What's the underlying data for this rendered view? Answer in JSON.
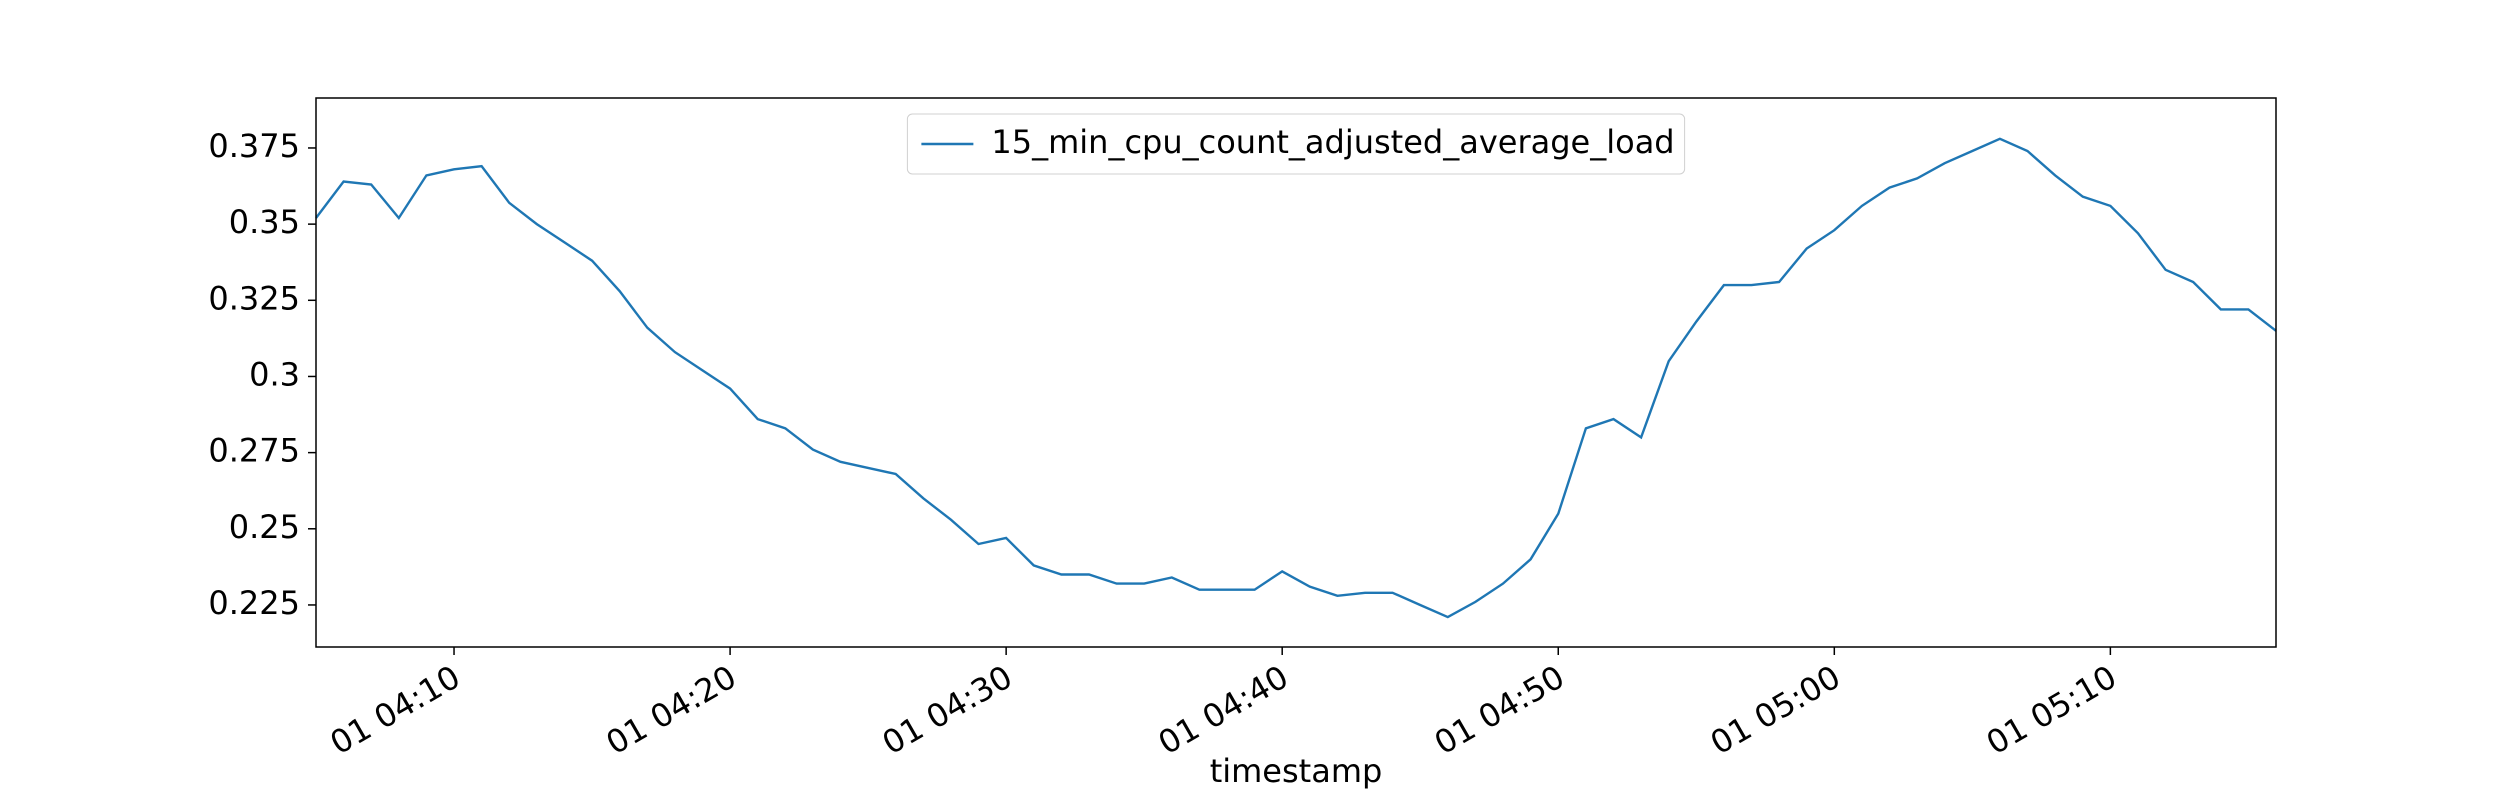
{
  "chart_data": {
    "type": "line",
    "xlabel": "timestamp",
    "x": [
      "01 04:05",
      "01 04:06",
      "01 04:07",
      "01 04:08",
      "01 04:09",
      "01 04:10",
      "01 04:11",
      "01 04:12",
      "01 04:13",
      "01 04:14",
      "01 04:15",
      "01 04:16",
      "01 04:17",
      "01 04:18",
      "01 04:19",
      "01 04:20",
      "01 04:21",
      "01 04:22",
      "01 04:23",
      "01 04:24",
      "01 04:25",
      "01 04:26",
      "01 04:27",
      "01 04:28",
      "01 04:29",
      "01 04:30",
      "01 04:31",
      "01 04:32",
      "01 04:33",
      "01 04:34",
      "01 04:35",
      "01 04:36",
      "01 04:37",
      "01 04:38",
      "01 04:39",
      "01 04:40",
      "01 04:41",
      "01 04:42",
      "01 04:43",
      "01 04:44",
      "01 04:45",
      "01 04:46",
      "01 04:47",
      "01 04:48",
      "01 04:49",
      "01 04:50",
      "01 04:51",
      "01 04:52",
      "01 04:53",
      "01 04:54",
      "01 04:55",
      "01 04:56",
      "01 04:57",
      "01 04:58",
      "01 04:59",
      "01 05:00",
      "01 05:01",
      "01 05:02",
      "01 05:03",
      "01 05:04",
      "01 05:05",
      "01 05:06",
      "01 05:07",
      "01 05:08",
      "01 05:09",
      "01 05:10",
      "01 05:11",
      "01 05:12",
      "01 05:13",
      "01 05:14",
      "01 05:15",
      "01 05:16"
    ],
    "series": [
      {
        "name": "15_min_cpu_count_adjusted_average_load",
        "color": "#1f77b4",
        "values": [
          0.352,
          0.364,
          0.363,
          0.352,
          0.366,
          0.368,
          0.369,
          0.357,
          0.35,
          0.344,
          0.338,
          0.328,
          0.316,
          0.308,
          0.302,
          0.296,
          0.286,
          0.283,
          0.276,
          0.272,
          0.27,
          0.268,
          0.26,
          0.253,
          0.245,
          0.247,
          0.238,
          0.235,
          0.235,
          0.232,
          0.232,
          0.234,
          0.23,
          0.23,
          0.23,
          0.236,
          0.231,
          0.228,
          0.229,
          0.229,
          0.225,
          0.221,
          0.226,
          0.232,
          0.24,
          0.255,
          0.283,
          0.286,
          0.28,
          0.305,
          0.318,
          0.33,
          0.33,
          0.331,
          0.342,
          0.348,
          0.356,
          0.362,
          0.365,
          0.37,
          0.374,
          0.378,
          0.374,
          0.366,
          0.359,
          0.356,
          0.347,
          0.335,
          0.331,
          0.322,
          0.322,
          0.315
        ]
      }
    ],
    "xlim": [
      "01 04:05",
      "01 05:16"
    ],
    "xticks": [
      "01 04:10",
      "01 04:20",
      "01 04:30",
      "01 04:40",
      "01 04:50",
      "01 05:00",
      "01 05:10"
    ],
    "ylim": [
      0.2112,
      0.3914
    ],
    "yticks": [
      0.225,
      0.25,
      0.275,
      0.3,
      0.325,
      0.35,
      0.375
    ],
    "legend": "upper center"
  }
}
